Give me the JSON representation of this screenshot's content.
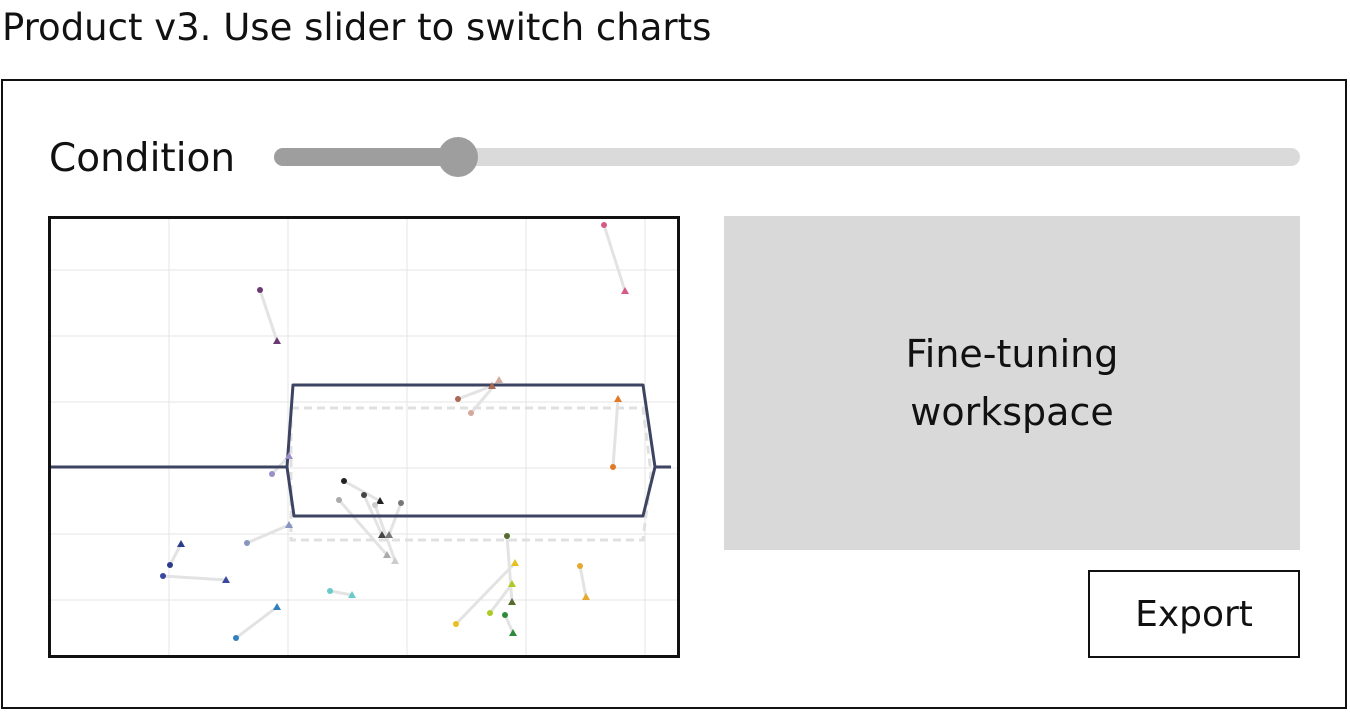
{
  "page": {
    "title": "Product v3. Use slider to switch charts"
  },
  "slider": {
    "label": "Condition",
    "value_fraction": 0.16
  },
  "workspace": {
    "label": "Fine-tuning workspace"
  },
  "export": {
    "label": "Export"
  },
  "chart_data": {
    "type": "scatter",
    "title": "",
    "xlabel": "",
    "ylabel": "",
    "grid": true,
    "pairs": [
      {
        "color": "#d65a88",
        "from": [
          553,
          6
        ],
        "to": [
          574,
          72
        ]
      },
      {
        "color": "#6a3b72",
        "from": [
          209,
          71
        ],
        "to": [
          226,
          122
        ]
      },
      {
        "color": "#a86a55",
        "from": [
          407,
          180
        ],
        "to": [
          441,
          167
        ]
      },
      {
        "color": "#d6a89a",
        "from": [
          420,
          194
        ],
        "to": [
          448,
          161
        ]
      },
      {
        "color": "#e07a28",
        "from": [
          562,
          248
        ],
        "to": [
          567,
          180
        ]
      },
      {
        "color": "#9a8fc8",
        "from": [
          221,
          255
        ],
        "to": [
          238,
          237
        ]
      },
      {
        "color": "#222222",
        "from": [
          293,
          262
        ],
        "to": [
          329,
          282
        ]
      },
      {
        "color": "#444444",
        "from": [
          313,
          276
        ],
        "to": [
          331,
          316
        ]
      },
      {
        "color": "#777777",
        "from": [
          350,
          284
        ],
        "to": [
          338,
          316
        ]
      },
      {
        "color": "#aaaaaa",
        "from": [
          288,
          281
        ],
        "to": [
          336,
          336
        ]
      },
      {
        "color": "#cccccc",
        "from": [
          324,
          286
        ],
        "to": [
          344,
          342
        ]
      },
      {
        "color": "#8895c0",
        "from": [
          196,
          324
        ],
        "to": [
          238,
          306
        ]
      },
      {
        "color": "#2c3b8a",
        "from": [
          119,
          346
        ],
        "to": [
          130,
          325
        ]
      },
      {
        "color": "#3a48a0",
        "from": [
          112,
          357
        ],
        "to": [
          175,
          361
        ]
      },
      {
        "color": "#66ccc8",
        "from": [
          279,
          372
        ],
        "to": [
          301,
          376
        ]
      },
      {
        "color": "#3080c0",
        "from": [
          185,
          419
        ],
        "to": [
          226,
          388
        ]
      },
      {
        "color": "#556b2f",
        "from": [
          456,
          317
        ],
        "to": [
          461,
          383
        ]
      },
      {
        "color": "#e8c020",
        "from": [
          405,
          405
        ],
        "to": [
          464,
          344
        ]
      },
      {
        "color": "#aacc22",
        "from": [
          439,
          394
        ],
        "to": [
          461,
          365
        ]
      },
      {
        "color": "#2e8b3a",
        "from": [
          454,
          396
        ],
        "to": [
          462,
          414
        ]
      },
      {
        "color": "#e8a830",
        "from": [
          529,
          347
        ],
        "to": [
          535,
          378
        ]
      }
    ]
  }
}
